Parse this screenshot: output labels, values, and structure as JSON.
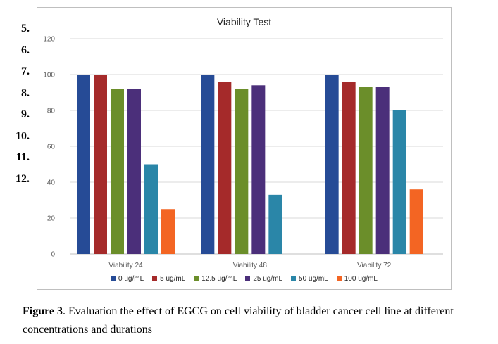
{
  "line_numbers": [
    "5.",
    "6.",
    "7.",
    "8.",
    "9.",
    "10.",
    "11.",
    "12."
  ],
  "caption": {
    "label": "Figure 3",
    "text": ". Evaluation the effect of EGCG on cell viability of bladder cancer cell line at different concentrations and durations"
  },
  "chart_data": {
    "type": "bar",
    "title": "Viability Test",
    "xlabel": "",
    "ylabel": "",
    "ylim": [
      0,
      120
    ],
    "yticks": [
      0,
      20,
      40,
      60,
      80,
      100,
      120
    ],
    "grid": true,
    "legend_position": "bottom",
    "categories": [
      "Viability 24",
      "Viability 48",
      "Viability 72"
    ],
    "series": [
      {
        "name": "0 ug/mL",
        "color": "#264b96",
        "values": [
          100,
          100,
          100
        ]
      },
      {
        "name": "5 ug/mL",
        "color": "#a52a2a",
        "values": [
          100,
          96,
          96
        ]
      },
      {
        "name": "12.5 ug/mL",
        "color": "#6b8e2a",
        "values": [
          92,
          92,
          93
        ]
      },
      {
        "name": "25 ug/mL",
        "color": "#4b2f7a",
        "values": [
          92,
          94,
          93
        ]
      },
      {
        "name": "50 ug/mL",
        "color": "#2a86a8",
        "values": [
          50,
          33,
          80
        ]
      },
      {
        "name": "100 ug/mL",
        "color": "#f36523",
        "values": [
          25,
          null,
          36
        ]
      }
    ]
  }
}
